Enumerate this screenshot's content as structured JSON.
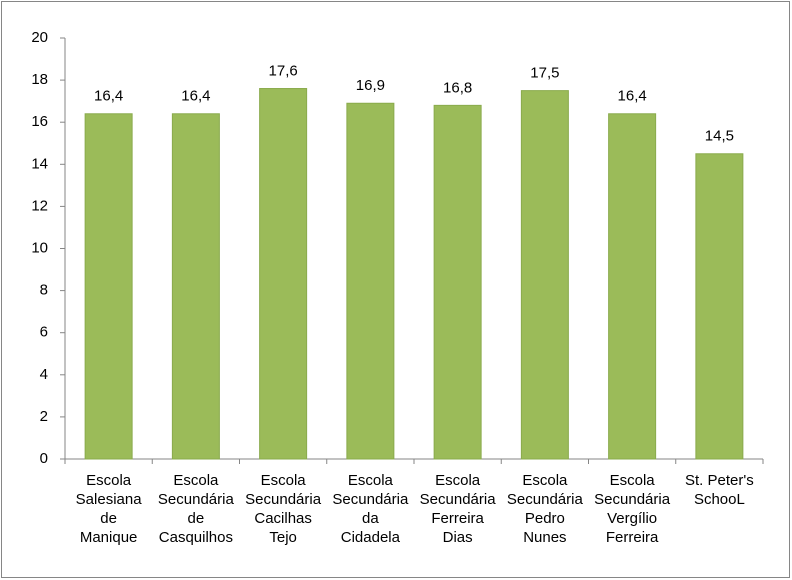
{
  "chart_data": {
    "type": "bar",
    "categories": [
      [
        "Escola",
        "Salesiana",
        "de",
        "Manique"
      ],
      [
        "Escola",
        "Secundária",
        "de",
        "Casquilhos"
      ],
      [
        "Escola",
        "Secundária",
        "Cacilhas",
        "Tejo"
      ],
      [
        "Escola",
        "Secundária",
        "da",
        "Cidadela"
      ],
      [
        "Escola",
        "Secundária",
        "Ferreira",
        "Dias"
      ],
      [
        "Escola",
        "Secundária",
        "Pedro",
        "Nunes"
      ],
      [
        "Escola",
        "Secundária",
        "Vergílio",
        "Ferreira"
      ],
      [
        "St. Peter's",
        "SchooL"
      ]
    ],
    "values": [
      16.4,
      16.4,
      17.6,
      16.9,
      16.8,
      17.5,
      16.4,
      14.5
    ],
    "value_labels": [
      "16,4",
      "16,4",
      "17,6",
      "16,9",
      "16,8",
      "17,5",
      "16,4",
      "14,5"
    ],
    "color": "#9bbb59",
    "ylim": [
      0,
      20
    ],
    "yticks": [
      0,
      2,
      4,
      6,
      8,
      10,
      12,
      14,
      16,
      18,
      20
    ]
  }
}
